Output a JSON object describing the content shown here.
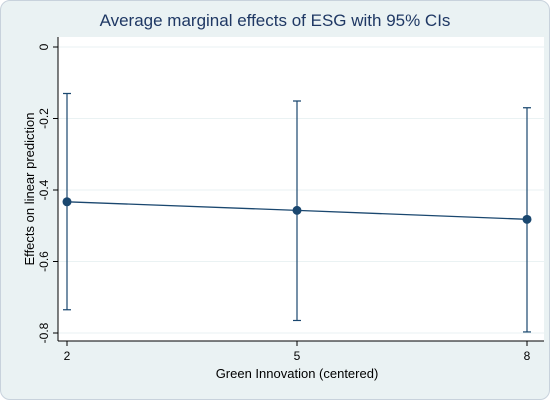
{
  "chart_data": {
    "type": "line",
    "title": "Average marginal effects of ESG with 95% CIs",
    "xlabel": "Green Innovation (centered)",
    "ylabel": "Effects on linear prediction",
    "x": [
      2,
      5,
      8
    ],
    "x_ticks": [
      "2",
      "5",
      "8"
    ],
    "y_ticks": [
      "0",
      "-0.2",
      "-0.4",
      "-0.6",
      "-0.8"
    ],
    "y_tick_values": [
      0,
      -0.2,
      -0.4,
      -0.6,
      -0.8
    ],
    "xlim": [
      2,
      8
    ],
    "ylim": [
      -0.8,
      0
    ],
    "series": [
      {
        "values": [
          -0.433,
          -0.457,
          -0.482
        ],
        "ci_lower": [
          -0.735,
          -0.765,
          -0.797
        ],
        "ci_upper": [
          -0.13,
          -0.151,
          -0.17
        ]
      }
    ],
    "grid": true,
    "legend": "none",
    "colors": {
      "series": "#1a476f",
      "background": "#eaf2f3",
      "plot_area": "#ffffff",
      "grid": "#eaf2f3",
      "title": "#1f3864"
    }
  }
}
